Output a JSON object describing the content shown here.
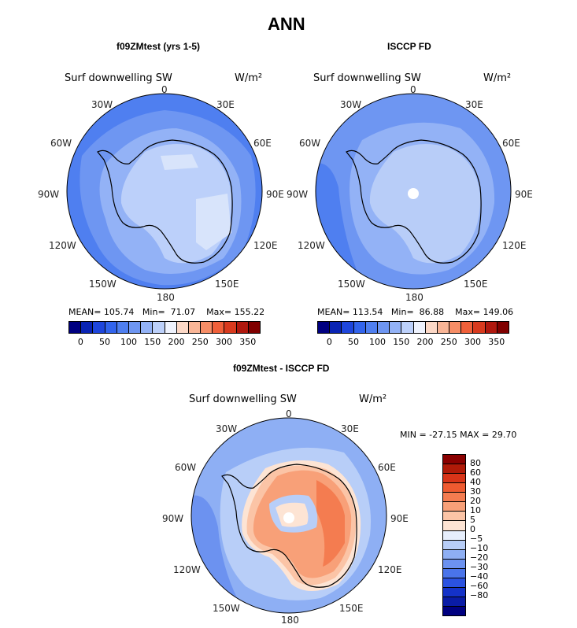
{
  "main_title": "ANN",
  "panels": {
    "model": {
      "title": "f09ZMtest (yrs 1-5)",
      "field": "Surf downwelling SW",
      "units": "W/m²",
      "mean_label": "MEAN=",
      "mean": "105.74",
      "min_label": "Min=",
      "min": "71.07",
      "max_label": "Max=",
      "max": "155.22"
    },
    "obs": {
      "title": "ISCCP FD",
      "field": "Surf downwelling SW",
      "units": "W/m²",
      "mean_label": "MEAN=",
      "mean": "113.54",
      "min_label": "Min=",
      "min": "86.88",
      "max_label": "Max=",
      "max": "149.06"
    },
    "diff": {
      "title": "f09ZMtest - ISCCP FD",
      "field": "Surf downwelling SW",
      "units": "W/m²",
      "minmax": "MIN = -27.15 MAX =  29.70"
    }
  },
  "longitude_labels": {
    "l0": "0",
    "l30e": "30E",
    "l60e": "60E",
    "l90e": "90E",
    "l120e": "120E",
    "l150e": "150E",
    "l180": "180",
    "l150w": "150W",
    "l120w": "120W",
    "l90w": "90W",
    "l60w": "60W",
    "l30w": "30W"
  },
  "abs_colorbar": {
    "ticks": [
      "0",
      "50",
      "100",
      "150",
      "200",
      "250",
      "300",
      "350"
    ],
    "colors": [
      "#000080",
      "#0a24b4",
      "#1e46dc",
      "#3264ec",
      "#4f7ff0",
      "#6e96f2",
      "#93b2f6",
      "#bcd0fa",
      "#eef2fd",
      "#fcd8c6",
      "#f9b596",
      "#f68d66",
      "#f0603a",
      "#d83a1e",
      "#b0180e",
      "#800000"
    ]
  },
  "diff_colorbar": {
    "ticks": [
      "80",
      "60",
      "40",
      "30",
      "20",
      "10",
      "5",
      "0",
      "−5",
      "−10",
      "−20",
      "−30",
      "−40",
      "−60",
      "−80"
    ],
    "colors": [
      "#8a0000",
      "#b01a08",
      "#d83418",
      "#ee5a30",
      "#f47c50",
      "#f8a078",
      "#fbc4a6",
      "#fde4d4",
      "#e6eefc",
      "#b8cef8",
      "#8eaff4",
      "#6c92f0",
      "#4a74ea",
      "#2b52e0",
      "#1432c8",
      "#0a1ca6",
      "#000080"
    ]
  },
  "map_colors": {
    "deep_ocean": "#4f7ff0",
    "ocean": "#6e96f2",
    "light_ocean": "#93b2f6",
    "ice": "#bcd0fa",
    "ice_light": "#d8e4fb",
    "obs_ocean": "#6e96f2",
    "obs_inner": "#93b2f6",
    "obs_ice": "#b8cdf8",
    "diff_ocean": "#8eaff4",
    "diff_neg": "#6c92f0",
    "diff_light": "#b8cef8",
    "diff_pos1": "#fde4d4",
    "diff_pos2": "#fbc4a6",
    "diff_pos3": "#f8a078",
    "diff_pos4": "#f47c50",
    "coast": "#000000"
  }
}
